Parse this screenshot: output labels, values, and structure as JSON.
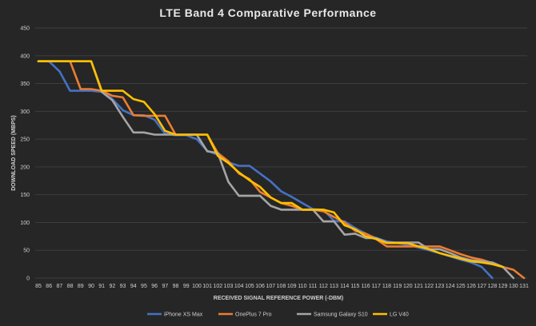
{
  "chart_data": {
    "type": "line",
    "title": "LTE Band 4 Comparative Performance",
    "xlabel": "RECEIVED SIGNAL REFERENCE POWER (-DBM)",
    "ylabel": "DOWNLOAD SPEED (MBPS)",
    "ylim": [
      0,
      450
    ],
    "yticks": [
      0,
      50,
      100,
      150,
      200,
      250,
      300,
      350,
      400,
      450
    ],
    "x": [
      85,
      86,
      87,
      88,
      89,
      90,
      91,
      92,
      93,
      94,
      95,
      96,
      97,
      98,
      99,
      100,
      101,
      102,
      103,
      104,
      105,
      106,
      107,
      108,
      109,
      110,
      111,
      112,
      113,
      114,
      115,
      116,
      117,
      118,
      119,
      120,
      121,
      122,
      123,
      124,
      125,
      126,
      127,
      128,
      129,
      130,
      131
    ],
    "grid": true,
    "legend_position": "bottom",
    "series": [
      {
        "name": "iPhone XS Max",
        "color": "#4472c4",
        "values": [
          390,
          390,
          372,
          337,
          337,
          337,
          335,
          322,
          302,
          293,
          293,
          285,
          260,
          257,
          257,
          250,
          229,
          222,
          208,
          202,
          202,
          188,
          174,
          156,
          146,
          135,
          124,
          123,
          103,
          102,
          90,
          80,
          72,
          66,
          63,
          60,
          55,
          50,
          45,
          39,
          33,
          28,
          20,
          0,
          null,
          null,
          null
        ]
      },
      {
        "name": "OnePlus 7 Pro",
        "color": "#ed7d31",
        "values": [
          390,
          390,
          390,
          390,
          340,
          340,
          337,
          328,
          325,
          293,
          292,
          292,
          292,
          258,
          258,
          258,
          258,
          225,
          210,
          188,
          178,
          155,
          145,
          135,
          130,
          123,
          123,
          120,
          110,
          100,
          85,
          80,
          70,
          57,
          57,
          57,
          57,
          57,
          57,
          50,
          43,
          37,
          33,
          27,
          20,
          15,
          0
        ]
      },
      {
        "name": "Samsung Galaxy S10",
        "color": "#a5a5a5",
        "values": [
          390,
          390,
          390,
          390,
          390,
          390,
          335,
          320,
          290,
          262,
          262,
          258,
          258,
          258,
          258,
          258,
          228,
          225,
          173,
          148,
          148,
          148,
          130,
          123,
          123,
          123,
          123,
          102,
          102,
          78,
          80,
          72,
          72,
          64,
          64,
          64,
          64,
          52,
          52,
          45,
          37,
          32,
          30,
          28,
          20,
          0,
          null
        ]
      },
      {
        "name": "LG V40",
        "color": "#ffc000",
        "values": [
          390,
          390,
          390,
          390,
          390,
          390,
          337,
          337,
          337,
          322,
          317,
          295,
          265,
          258,
          258,
          258,
          258,
          220,
          207,
          190,
          176,
          164,
          145,
          135,
          135,
          123,
          123,
          123,
          118,
          95,
          88,
          75,
          70,
          63,
          63,
          63,
          57,
          52,
          45,
          40,
          35,
          30,
          28,
          25,
          20,
          null,
          null
        ]
      }
    ]
  }
}
